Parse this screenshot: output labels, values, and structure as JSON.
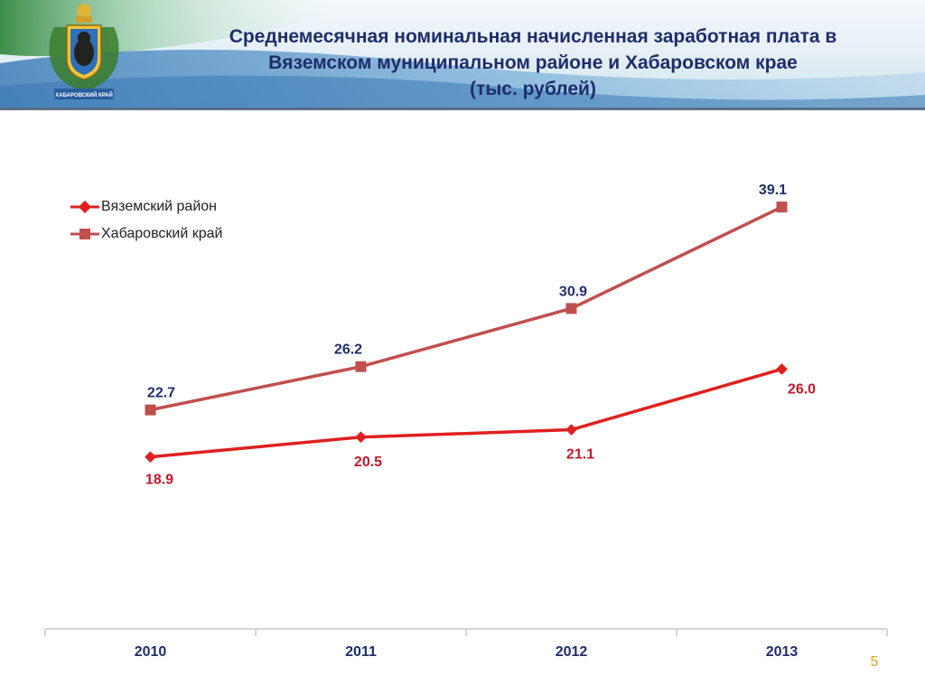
{
  "header": {
    "title_lines": [
      "Среднемесячная номинальная начисленная заработная плата в",
      "Вяземском муниципальном районе и Хабаровском крае",
      "(тыс. рублей)"
    ],
    "emblem_caption": "ХАБАРОВСКИЙ КРАЙ"
  },
  "chart_data": {
    "type": "line",
    "categories": [
      "2010",
      "2011",
      "2012",
      "2013"
    ],
    "series": [
      {
        "name": "Вяземский район",
        "values": [
          18.9,
          20.5,
          21.1,
          26.0
        ],
        "labels": [
          "18.9",
          "20.5",
          "21.1",
          "26.0"
        ],
        "color": "#e02020",
        "marker": "diamond",
        "label_color": "#c0182a"
      },
      {
        "name": "Хабаровский край",
        "values": [
          22.7,
          26.2,
          30.9,
          39.1
        ],
        "labels": [
          "22.7",
          "26.2",
          "30.9",
          "39.1"
        ],
        "color": "#c0504d",
        "marker": "square",
        "label_color": "#1f2d6b"
      }
    ],
    "title": "",
    "xlabel": "",
    "ylabel": "",
    "ylim": [
      5,
      44
    ],
    "grid": false,
    "legend_position": "top-left"
  },
  "footer": {
    "page_number": "5"
  },
  "colors": {
    "title": "#1f2d6b",
    "page_number": "#e8a21a",
    "header_line": "#5b6f86"
  }
}
